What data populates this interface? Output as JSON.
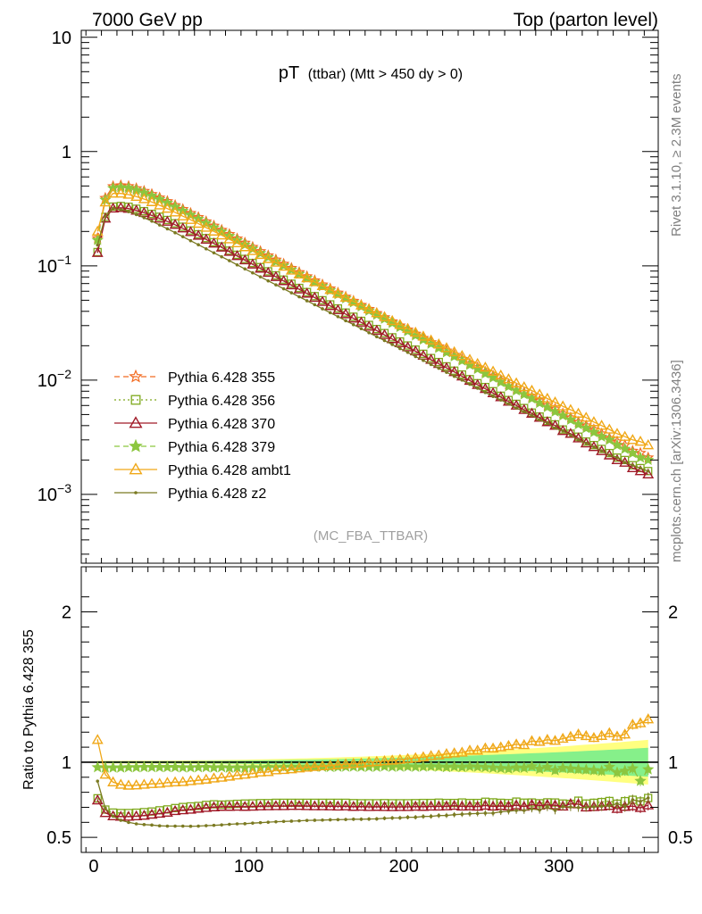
{
  "header": {
    "left": "7000 GeV pp",
    "right": "Top (parton level)"
  },
  "side_labels": {
    "version": "Rivet 3.1.10, ≥ 2.3M events",
    "source": "mcplots.cern.ch [arXiv:1306.3436]"
  },
  "chart_data": {
    "type": "line",
    "title_main": "pT",
    "title_sub": "(ttbar) (Mtt > 450 dy > 0)",
    "analysis": "(MC_FBA_TTBAR)",
    "ratio_ylabel": "Ratio to Pythia 6.428 355",
    "x_range": [
      -8,
      364
    ],
    "top_yscale": "log",
    "top_ylim": [
      0.00025,
      11.5
    ],
    "top_ticks": [
      {
        "value": 10,
        "base": "10",
        "exp": ""
      },
      {
        "value": 1,
        "base": "1",
        "exp": ""
      },
      {
        "value": 0.1,
        "base": "10",
        "exp": "−1"
      },
      {
        "value": 0.01,
        "base": "10",
        "exp": "−2"
      },
      {
        "value": 0.001,
        "base": "10",
        "exp": "−3"
      }
    ],
    "x_ticks": [
      0,
      100,
      200,
      300
    ],
    "ratio_ylim": [
      0.4,
      2.3
    ],
    "ratio_ticks": [
      0.5,
      1,
      2
    ],
    "bin_width": 5,
    "x_start": 2.5,
    "n_bins": 72,
    "band": {
      "inner_color": "#86f08a",
      "outer_color": "#ffff80"
    },
    "legend": {
      "placement": "middle-left"
    },
    "series": [
      {
        "name": "Pythia 6.428 355",
        "color": "#f26b21",
        "dash": "6,4",
        "marker": "star-open",
        "values": [
          0.174,
          0.392,
          0.496,
          0.505,
          0.497,
          0.476,
          0.451,
          0.423,
          0.395,
          0.367,
          0.339,
          0.313,
          0.289,
          0.266,
          0.244,
          0.224,
          0.206,
          0.189,
          0.173,
          0.159,
          0.146,
          0.134,
          0.123,
          0.113,
          0.1039,
          0.0955,
          0.0878,
          0.0808,
          0.0744,
          0.0685,
          0.0631,
          0.0581,
          0.0535,
          0.0493,
          0.0454,
          0.0418,
          0.0385,
          0.0354,
          0.0326,
          0.03,
          0.0276,
          0.0254,
          0.0233,
          0.0214,
          0.0197,
          0.0181,
          0.0166,
          0.0153,
          0.014,
          0.0129,
          0.0118,
          0.0109,
          0.01,
          0.0092,
          0.0084,
          0.0078,
          0.0071,
          0.0066,
          0.006,
          0.0056,
          0.0051,
          0.0047,
          0.0043,
          0.004,
          0.0037,
          0.0034,
          0.0031,
          0.0029,
          0.0027,
          0.0024,
          0.0023,
          0.0021
        ]
      },
      {
        "name": "Pythia 6.428 356",
        "color": "#7ea81c",
        "dash": "2,3",
        "marker": "square-open",
        "values": [
          0.132,
          0.268,
          0.33,
          0.334,
          0.329,
          0.316,
          0.301,
          0.285,
          0.269,
          0.252,
          0.236,
          0.22,
          0.204,
          0.189,
          0.175,
          0.161,
          0.148,
          0.136,
          0.125,
          0.115,
          0.106,
          0.0975,
          0.0896,
          0.0825,
          0.0758,
          0.0698,
          0.0641,
          0.059,
          0.0543,
          0.05,
          0.046,
          0.0424,
          0.039,
          0.0359,
          0.033,
          0.0304,
          0.028,
          0.0258,
          0.0237,
          0.0218,
          0.0201,
          0.0185,
          0.017,
          0.0156,
          0.0144,
          0.0132,
          0.0121,
          0.0112,
          0.0102,
          0.0094,
          0.0087,
          0.008,
          0.0073,
          0.0067,
          0.0062,
          0.0057,
          0.0052,
          0.0048,
          0.0044,
          0.0041,
          0.0037,
          0.0034,
          0.0032,
          0.0029,
          0.0027,
          0.0025,
          0.0023,
          0.0021,
          0.002,
          0.0018,
          0.0017,
          0.0016
        ]
      },
      {
        "name": "Pythia 6.428 370",
        "color": "#a01a28",
        "dash": "",
        "marker": "triangle-open",
        "values": [
          0.13,
          0.26,
          0.318,
          0.322,
          0.317,
          0.305,
          0.291,
          0.276,
          0.26,
          0.244,
          0.229,
          0.213,
          0.198,
          0.184,
          0.17,
          0.157,
          0.145,
          0.133,
          0.122,
          0.112,
          0.103,
          0.0948,
          0.0871,
          0.0801,
          0.0737,
          0.0678,
          0.0623,
          0.0573,
          0.0527,
          0.0485,
          0.0446,
          0.041,
          0.0378,
          0.0347,
          0.032,
          0.0294,
          0.0271,
          0.0249,
          0.0229,
          0.0211,
          0.0194,
          0.0179,
          0.0164,
          0.0151,
          0.0139,
          0.0128,
          0.0118,
          0.0108,
          0.0099,
          0.0091,
          0.0084,
          0.0077,
          0.0071,
          0.0065,
          0.006,
          0.0055,
          0.0051,
          0.0047,
          0.0043,
          0.004,
          0.0036,
          0.0034,
          0.0031,
          0.0028,
          0.0026,
          0.0024,
          0.0022,
          0.002,
          0.0019,
          0.0017,
          0.0016,
          0.0015
        ]
      },
      {
        "name": "Pythia 6.428 379",
        "color": "#8cc63f",
        "dash": "6,4",
        "marker": "star-filled",
        "values": [
          0.168,
          0.378,
          0.478,
          0.487,
          0.48,
          0.46,
          0.436,
          0.409,
          0.382,
          0.355,
          0.328,
          0.302,
          0.279,
          0.257,
          0.236,
          0.216,
          0.199,
          0.182,
          0.167,
          0.153,
          0.141,
          0.129,
          0.119,
          0.109,
          0.1005,
          0.0924,
          0.085,
          0.0782,
          0.0721,
          0.0664,
          0.0611,
          0.0563,
          0.0519,
          0.0478,
          0.044,
          0.0405,
          0.0373,
          0.0344,
          0.0316,
          0.0291,
          0.0268,
          0.0246,
          0.0226,
          0.0208,
          0.0191,
          0.0175,
          0.0161,
          0.0148,
          0.0136,
          0.0125,
          0.0114,
          0.0105,
          0.0096,
          0.0088,
          0.0081,
          0.0075,
          0.0069,
          0.0063,
          0.0058,
          0.0053,
          0.0049,
          0.0045,
          0.0041,
          0.0038,
          0.0035,
          0.0032,
          0.003,
          0.0027,
          0.0025,
          0.0023,
          0.0021,
          0.002
        ]
      },
      {
        "name": "Pythia 6.428 ambt1",
        "color": "#f0a818",
        "dash": "",
        "marker": "triangle-open",
        "values": [
          0.2,
          0.36,
          0.43,
          0.43,
          0.42,
          0.403,
          0.384,
          0.362,
          0.339,
          0.317,
          0.294,
          0.272,
          0.253,
          0.234,
          0.216,
          0.2,
          0.185,
          0.171,
          0.158,
          0.146,
          0.135,
          0.125,
          0.115,
          0.107,
          0.0986,
          0.0911,
          0.0843,
          0.078,
          0.0721,
          0.0667,
          0.0617,
          0.0571,
          0.0528,
          0.0488,
          0.0451,
          0.0418,
          0.0386,
          0.0357,
          0.033,
          0.0305,
          0.0282,
          0.0261,
          0.0241,
          0.0223,
          0.0206,
          0.0191,
          0.0176,
          0.0163,
          0.0151,
          0.0139,
          0.0129,
          0.0119,
          0.011,
          0.0102,
          0.0094,
          0.0087,
          0.0081,
          0.0075,
          0.0069,
          0.0064,
          0.0059,
          0.0055,
          0.0051,
          0.0047,
          0.0043,
          0.004,
          0.0037,
          0.0034,
          0.0032,
          0.003,
          0.0029,
          0.0027
        ]
      },
      {
        "name": "Pythia 6.428 z2",
        "color": "#7b7a22",
        "dash": "",
        "marker": "dot",
        "values": [
          0.152,
          0.272,
          0.318,
          0.31,
          0.298,
          0.281,
          0.264,
          0.246,
          0.228,
          0.211,
          0.195,
          0.18,
          0.166,
          0.153,
          0.141,
          0.13,
          0.12,
          0.111,
          0.102,
          0.094,
          0.0868,
          0.0801,
          0.0739,
          0.0682,
          0.063,
          0.0581,
          0.0536,
          0.0495,
          0.0457,
          0.0421,
          0.0389,
          0.0359,
          0.0331,
          0.0306,
          0.0282,
          0.026,
          0.024,
          0.0222,
          0.0205,
          0.0189,
          0.0175,
          0.0161,
          0.0149,
          0.0137,
          0.0127,
          0.0117,
          0.0108,
          0.01,
          0.0092,
          0.0085,
          0.0078,
          0.0072,
          0.0067,
          0.0062,
          0.0057,
          0.0053,
          0.0049,
          0.0045,
          0.0042,
          0.0038,
          0.0036,
          0.0033,
          0.003,
          0.0028,
          0.0026,
          0.0024,
          0.0022,
          0.0021,
          0.0019,
          0.0018,
          0.0017,
          0.0016
        ]
      }
    ],
    "ratios": [
      {
        "name": "Pythia 6.428 355",
        "values": [
          1,
          1,
          1,
          1,
          1,
          1,
          1,
          1,
          1,
          1,
          1,
          1,
          1,
          1,
          1,
          1,
          1,
          1,
          1,
          1,
          1,
          1,
          1,
          1,
          1,
          1,
          1,
          1,
          1,
          1,
          1,
          1,
          1,
          1,
          1,
          1,
          1,
          1,
          1,
          1,
          1,
          1,
          1,
          1,
          1,
          1,
          1,
          1,
          1,
          1,
          1,
          1,
          1,
          1,
          1,
          1,
          1,
          1,
          1,
          1,
          1,
          1,
          1,
          1,
          1,
          1,
          1,
          1,
          1,
          1,
          1,
          1
        ]
      },
      {
        "name": "Pythia 6.428 356",
        "values": [
          0.76,
          0.685,
          0.665,
          0.662,
          0.662,
          0.664,
          0.668,
          0.672,
          0.68,
          0.686,
          0.695,
          0.702,
          0.706,
          0.709,
          0.716,
          0.72,
          0.718,
          0.72,
          0.723,
          0.725,
          0.726,
          0.728,
          0.728,
          0.73,
          0.73,
          0.73,
          0.73,
          0.73,
          0.73,
          0.73,
          0.73,
          0.73,
          0.73,
          0.728,
          0.727,
          0.727,
          0.727,
          0.728,
          0.727,
          0.727,
          0.727,
          0.728,
          0.729,
          0.729,
          0.731,
          0.729,
          0.729,
          0.732,
          0.729,
          0.729,
          0.737,
          0.733,
          0.73,
          0.728,
          0.738,
          0.731,
          0.732,
          0.727,
          0.733,
          0.732,
          0.725,
          0.723,
          0.744,
          0.725,
          0.73,
          0.735,
          0.742,
          0.724,
          0.741,
          0.75,
          0.739,
          0.762
        ]
      },
      {
        "name": "Pythia 6.428 370",
        "values": [
          0.747,
          0.663,
          0.641,
          0.638,
          0.638,
          0.641,
          0.645,
          0.652,
          0.658,
          0.665,
          0.676,
          0.681,
          0.685,
          0.692,
          0.697,
          0.701,
          0.704,
          0.704,
          0.705,
          0.704,
          0.705,
          0.707,
          0.708,
          0.709,
          0.709,
          0.71,
          0.71,
          0.709,
          0.708,
          0.708,
          0.707,
          0.706,
          0.707,
          0.704,
          0.705,
          0.703,
          0.704,
          0.703,
          0.702,
          0.703,
          0.703,
          0.705,
          0.704,
          0.706,
          0.706,
          0.707,
          0.711,
          0.706,
          0.707,
          0.705,
          0.712,
          0.706,
          0.71,
          0.707,
          0.714,
          0.705,
          0.718,
          0.712,
          0.717,
          0.714,
          0.706,
          0.723,
          0.721,
          0.7,
          0.703,
          0.706,
          0.71,
          0.69,
          0.704,
          0.708,
          0.696,
          0.714
        ]
      },
      {
        "name": "Pythia 6.428 379",
        "values": [
          0.966,
          0.964,
          0.964,
          0.964,
          0.966,
          0.966,
          0.967,
          0.967,
          0.967,
          0.967,
          0.967,
          0.965,
          0.965,
          0.966,
          0.967,
          0.964,
          0.966,
          0.963,
          0.965,
          0.962,
          0.966,
          0.963,
          0.967,
          0.965,
          0.967,
          0.968,
          0.968,
          0.968,
          0.969,
          0.969,
          0.968,
          0.969,
          0.97,
          0.97,
          0.969,
          0.969,
          0.969,
          0.972,
          0.969,
          0.97,
          0.971,
          0.969,
          0.97,
          0.972,
          0.97,
          0.967,
          0.97,
          0.967,
          0.971,
          0.969,
          0.966,
          0.963,
          0.96,
          0.957,
          0.964,
          0.962,
          0.972,
          0.955,
          0.967,
          0.946,
          0.961,
          0.957,
          0.953,
          0.95,
          0.946,
          0.941,
          0.968,
          0.931,
          0.942,
          0.958,
          0.875,
          0.952
        ]
      },
      {
        "name": "Pythia 6.428 ambt1",
        "values": [
          1.149,
          0.918,
          0.867,
          0.851,
          0.845,
          0.847,
          0.851,
          0.856,
          0.858,
          0.864,
          0.867,
          0.869,
          0.875,
          0.88,
          0.885,
          0.893,
          0.898,
          0.905,
          0.913,
          0.918,
          0.925,
          0.933,
          0.935,
          0.947,
          0.949,
          0.954,
          0.96,
          0.965,
          0.969,
          0.974,
          0.978,
          0.983,
          0.987,
          0.99,
          0.993,
          1.0,
          1.003,
          1.008,
          1.012,
          1.017,
          1.022,
          1.028,
          1.034,
          1.042,
          1.046,
          1.055,
          1.06,
          1.065,
          1.078,
          1.078,
          1.093,
          1.092,
          1.1,
          1.109,
          1.119,
          1.115,
          1.141,
          1.136,
          1.15,
          1.143,
          1.157,
          1.17,
          1.186,
          1.175,
          1.162,
          1.176,
          1.194,
          1.172,
          1.185,
          1.25,
          1.26,
          1.286
        ]
      },
      {
        "name": "Pythia 6.428 z2",
        "values": [
          0.874,
          0.694,
          0.641,
          0.614,
          0.6,
          0.59,
          0.585,
          0.582,
          0.577,
          0.575,
          0.575,
          0.575,
          0.574,
          0.575,
          0.578,
          0.58,
          0.583,
          0.587,
          0.59,
          0.591,
          0.595,
          0.598,
          0.601,
          0.604,
          0.606,
          0.608,
          0.61,
          0.613,
          0.614,
          0.615,
          0.617,
          0.618,
          0.619,
          0.621,
          0.621,
          0.622,
          0.623,
          0.627,
          0.629,
          0.63,
          0.634,
          0.634,
          0.639,
          0.64,
          0.645,
          0.646,
          0.651,
          0.654,
          0.657,
          0.659,
          0.661,
          0.661,
          0.67,
          0.674,
          0.679,
          0.679,
          0.69,
          0.682,
          0.7,
          0.679,
          0.706,
          0.702,
          0.698,
          0.7,
          0.703,
          0.706,
          0.71,
          0.724,
          0.704,
          0.75,
          0.739,
          0.762
        ]
      }
    ]
  }
}
